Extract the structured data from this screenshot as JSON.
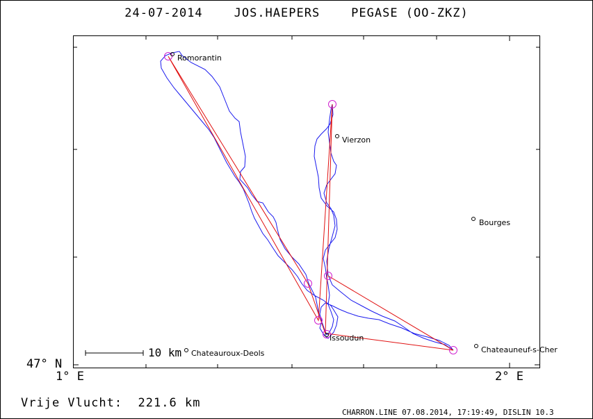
{
  "title": {
    "date": "24-07-2014",
    "pilot": "JOS.HAEPERS",
    "glider": "PEGASE (OO-ZKZ)"
  },
  "axes": {
    "x_left_label": "1° E",
    "x_right_label": "2° E",
    "y_bottom_label": "47° N"
  },
  "scale_bar": {
    "label": "10 km"
  },
  "places": [
    {
      "name": "Romorantin"
    },
    {
      "name": "Vierzon"
    },
    {
      "name": "Bourges"
    },
    {
      "name": "Issoudun"
    },
    {
      "name": "Chateauroux-Deols"
    },
    {
      "name": "Chateauneuf-s-Cher"
    }
  ],
  "colors": {
    "track": "#1a1aee",
    "task": "#e01010",
    "turnpoint": "#d020d0"
  },
  "footer": {
    "distance_label": "Vrije Vlucht:",
    "distance_value": "221.6 km",
    "credit": "CHARRON.LINE 07.08.2014, 17:19:49, DISLIN 10.3"
  }
}
